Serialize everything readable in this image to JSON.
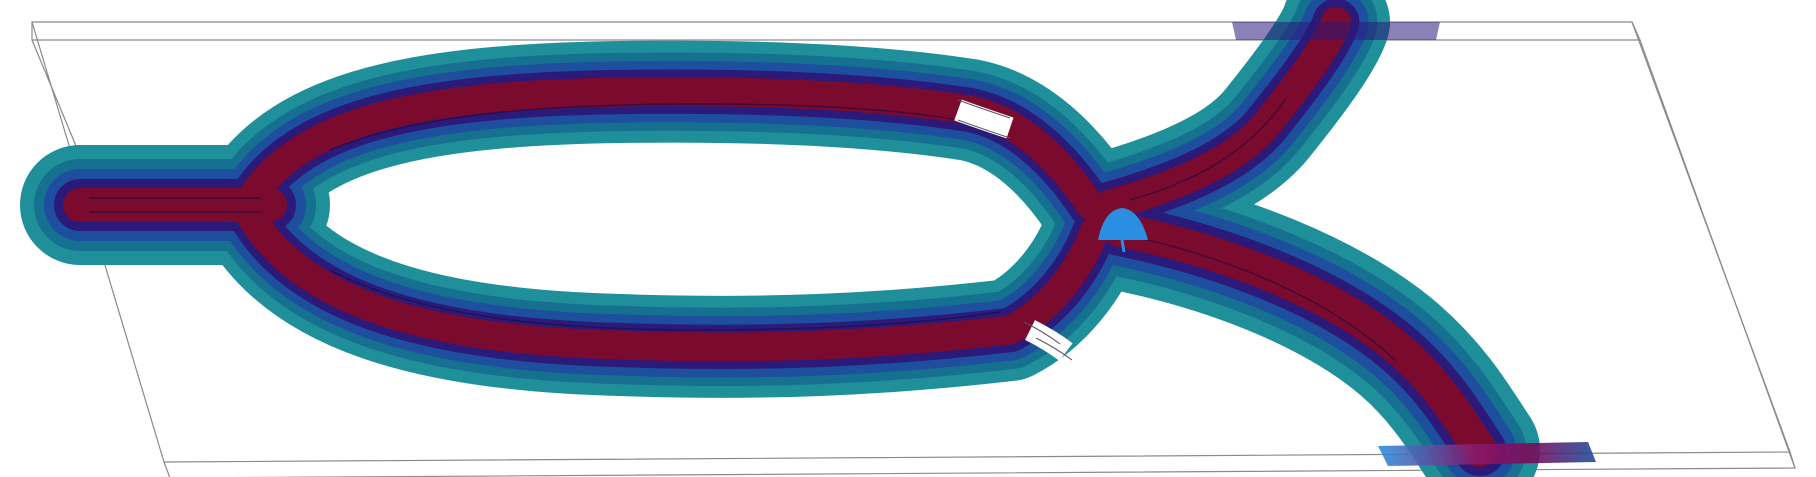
{
  "scene": {
    "description_type": "3d-flow-simulation-render",
    "colors": {
      "background": "#ffffff",
      "slab_edge": "#8a8a8a",
      "outer_band": "#1f8f9a",
      "mid_band": "#1d4f9e",
      "inner_band": "#2b1a7a",
      "core": "#7a0a2e",
      "highlight": "#2a8fe0",
      "gap": "#ffffff"
    },
    "icons": []
  }
}
